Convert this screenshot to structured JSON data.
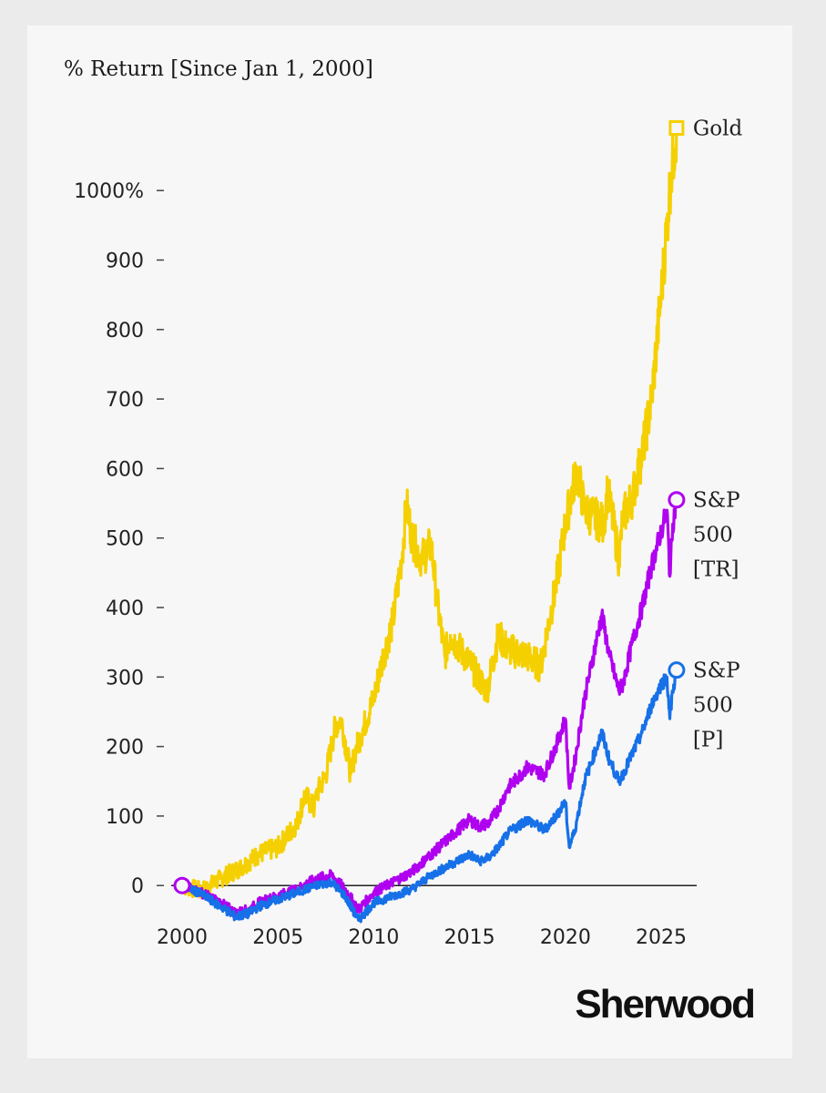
{
  "brand": "Sherwood",
  "chart_data": {
    "type": "line",
    "title": "% Return [Since Jan 1, 2000]",
    "xlabel": "",
    "ylabel": "% Return [Since Jan 1, 2000]",
    "xlim": [
      2000,
      2025.9
    ],
    "ylim": [
      -60,
      1130
    ],
    "x_ticks": [
      2000,
      2005,
      2010,
      2015,
      2020,
      2025
    ],
    "x_tick_labels": [
      "2000",
      "2005",
      "2010",
      "2015",
      "2020",
      "2025"
    ],
    "y_ticks": [
      0,
      100,
      200,
      300,
      400,
      500,
      600,
      700,
      800,
      900,
      1000
    ],
    "y_tick_labels": [
      "0",
      "100",
      "200",
      "300",
      "400",
      "500",
      "600",
      "700",
      "800",
      "900",
      "1000%"
    ],
    "grid": false,
    "legend": "direct labels at line ends",
    "colors": {
      "gold": "#f5d000",
      "sp500_tr": "#b000f0",
      "sp500_p": "#1670e8",
      "zero_line": "#222222"
    },
    "series": [
      {
        "name": "Gold",
        "label_lines": [
          "Gold"
        ],
        "color": "#f5d000",
        "end_marker": "square",
        "x": [
          2000,
          2001,
          2002,
          2003,
          2004,
          2005,
          2006,
          2006.4,
          2006.9,
          2007,
          2007.5,
          2008,
          2008.3,
          2008.8,
          2009,
          2009.5,
          2010,
          2010.5,
          2011,
          2011.5,
          2011.7,
          2012,
          2012.5,
          2013,
          2013.3,
          2013.7,
          2014,
          2015,
          2015.9,
          2016.5,
          2017,
          2018,
          2018.7,
          2019,
          2019.5,
          2020,
          2020.6,
          2021,
          2022,
          2022.2,
          2022.8,
          2023,
          2023.5,
          2024,
          2024.5,
          2025,
          2025.3,
          2025.5,
          2025.8
        ],
        "y": [
          0,
          -8,
          10,
          25,
          45,
          55,
          90,
          130,
          110,
          130,
          160,
          230,
          240,
          160,
          190,
          230,
          270,
          330,
          380,
          480,
          550,
          500,
          470,
          490,
          410,
          330,
          360,
          320,
          280,
          360,
          340,
          330,
          315,
          360,
          430,
          520,
          600,
          540,
          520,
          570,
          470,
          530,
          560,
          620,
          700,
          850,
          950,
          1020,
          1090
        ]
      },
      {
        "name": "S&P 500 [TR]",
        "label_lines": [
          "S&P",
          "500",
          "[TR]"
        ],
        "color": "#b000f0",
        "end_marker": "circle",
        "x": [
          2000,
          2001,
          2002,
          2002.8,
          2003.5,
          2004,
          2005,
          2006,
          2007,
          2007.8,
          2008.5,
          2009.2,
          2010,
          2011,
          2012,
          2013,
          2014,
          2015,
          2015.5,
          2016,
          2016.5,
          2017,
          2018,
          2018.9,
          2019.5,
          2020,
          2020.2,
          2020.5,
          2021,
          2021.9,
          2022.3,
          2022.8,
          2023,
          2023.5,
          2024,
          2024.5,
          2025,
          2025.3,
          2025.45,
          2025.6,
          2025.8
        ],
        "y": [
          0,
          -10,
          -25,
          -40,
          -35,
          -25,
          -15,
          -5,
          10,
          15,
          -5,
          -35,
          -10,
          5,
          20,
          45,
          70,
          95,
          85,
          90,
          110,
          140,
          170,
          160,
          200,
          240,
          140,
          180,
          270,
          390,
          330,
          280,
          290,
          350,
          400,
          460,
          510,
          540,
          445,
          520,
          555
        ]
      },
      {
        "name": "S&P 500 [P]",
        "label_lines": [
          "S&P",
          "500",
          "[P]"
        ],
        "color": "#1670e8",
        "end_marker": "circle",
        "x": [
          2000,
          2001,
          2002,
          2002.8,
          2003.5,
          2004,
          2005,
          2006,
          2007,
          2007.8,
          2008.5,
          2009.2,
          2010,
          2011,
          2012,
          2013,
          2014,
          2015,
          2015.5,
          2016,
          2016.5,
          2017,
          2018,
          2018.9,
          2019.5,
          2020,
          2020.2,
          2020.5,
          2021,
          2021.9,
          2022.3,
          2022.8,
          2023,
          2023.5,
          2024,
          2024.5,
          2025,
          2025.3,
          2025.45,
          2025.6,
          2025.8
        ],
        "y": [
          0,
          -12,
          -30,
          -45,
          -40,
          -30,
          -20,
          -10,
          0,
          5,
          -15,
          -50,
          -25,
          -15,
          -5,
          15,
          30,
          45,
          35,
          40,
          55,
          75,
          95,
          80,
          100,
          120,
          55,
          80,
          150,
          220,
          180,
          150,
          160,
          190,
          220,
          260,
          290,
          300,
          240,
          280,
          310
        ]
      }
    ]
  }
}
